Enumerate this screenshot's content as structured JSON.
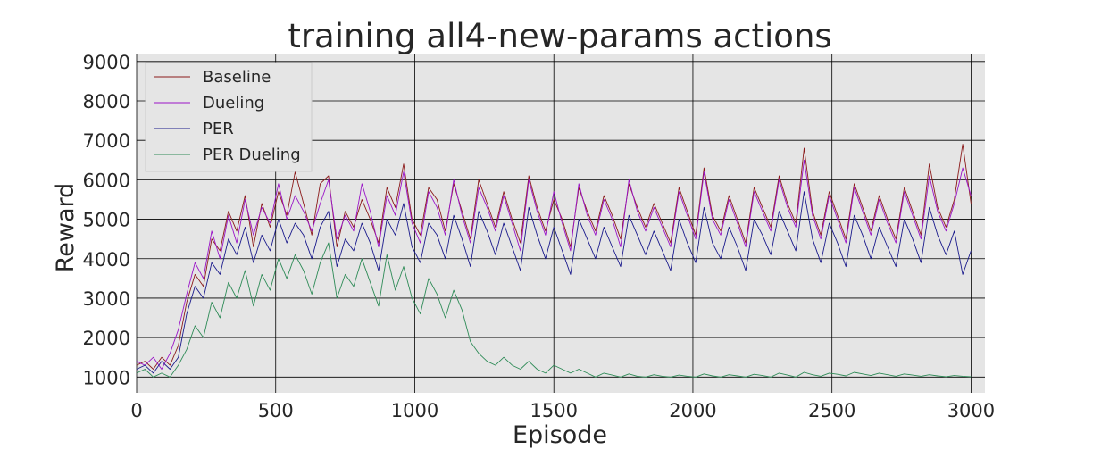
{
  "chart_data": {
    "type": "line",
    "title": "training all4-new-params actions",
    "xlabel": "Episode",
    "ylabel": "Reward",
    "xlim": [
      0,
      3050
    ],
    "ylim": [
      600,
      9200
    ],
    "xticks": [
      0,
      500,
      1000,
      1500,
      2000,
      2500,
      3000
    ],
    "yticks": [
      1000,
      2000,
      3000,
      4000,
      5000,
      6000,
      7000,
      8000,
      9000
    ],
    "grid": true,
    "legend_position": "top-left",
    "series": [
      {
        "name": "Baseline",
        "color": "#8b1a1a",
        "step": 30,
        "values": [
          1300,
          1400,
          1200,
          1500,
          1300,
          1800,
          2900,
          3600,
          3300,
          4500,
          4200,
          5200,
          4700,
          5600,
          4300,
          5400,
          4800,
          5700,
          5100,
          6200,
          5400,
          4600,
          5900,
          6100,
          4300,
          5200,
          4800,
          5500,
          5000,
          4400,
          5800,
          5300,
          6400,
          5000,
          4600,
          5800,
          5500,
          4700,
          5900,
          5200,
          4500,
          6000,
          5400,
          4800,
          5700,
          5000,
          4400,
          6100,
          5300,
          4700,
          5500,
          5000,
          4300,
          5800,
          5200,
          4700,
          5600,
          5100,
          4500,
          5900,
          5300,
          4800,
          5400,
          4900,
          4400,
          5800,
          5200,
          4600,
          6300,
          5100,
          4700,
          5600,
          5000,
          4400,
          5800,
          5300,
          4800,
          6100,
          5400,
          4900,
          6800,
          5200,
          4600,
          5700,
          5100,
          4500,
          5900,
          5300,
          4700,
          5600,
          5000,
          4500,
          5800,
          5200,
          4600,
          6400,
          5300,
          4800,
          5500,
          6900,
          5400
        ]
      },
      {
        "name": "Dueling",
        "color": "#9a14c8",
        "step": 30,
        "values": [
          1400,
          1300,
          1500,
          1200,
          1600,
          2200,
          3100,
          3900,
          3500,
          4700,
          4000,
          5100,
          4400,
          5500,
          4600,
          5300,
          4900,
          5900,
          5000,
          5600,
          5200,
          4700,
          5400,
          6000,
          4500,
          5100,
          4700,
          5900,
          5200,
          4300,
          5600,
          5100,
          6200,
          4900,
          4400,
          5700,
          5300,
          4600,
          6000,
          5100,
          4400,
          5800,
          5300,
          4700,
          5600,
          4900,
          4200,
          6000,
          5200,
          4600,
          5700,
          4900,
          4200,
          5900,
          5100,
          4600,
          5500,
          5000,
          4300,
          6000,
          5200,
          4700,
          5300,
          4800,
          4300,
          5700,
          5100,
          4500,
          6200,
          5000,
          4600,
          5500,
          4900,
          4300,
          5700,
          5200,
          4700,
          6000,
          5300,
          4800,
          6500,
          5100,
          4500,
          5600,
          5000,
          4400,
          5800,
          5200,
          4600,
          5500,
          4900,
          4400,
          5700,
          5100,
          4500,
          6100,
          5200,
          4700,
          5400,
          6300,
          5600
        ]
      },
      {
        "name": "PER",
        "color": "#1a1a8c",
        "step": 30,
        "values": [
          1200,
          1300,
          1100,
          1400,
          1200,
          1500,
          2600,
          3300,
          3000,
          3900,
          3600,
          4500,
          4100,
          4800,
          3900,
          4600,
          4200,
          5000,
          4400,
          4900,
          4600,
          4000,
          4800,
          5200,
          3800,
          4500,
          4200,
          4900,
          4400,
          3700,
          5000,
          4600,
          5400,
          4300,
          3900,
          4900,
          4600,
          4000,
          5100,
          4500,
          3800,
          5200,
          4700,
          4100,
          4900,
          4300,
          3700,
          5300,
          4600,
          4000,
          4800,
          4200,
          3600,
          5000,
          4500,
          4000,
          4800,
          4300,
          3800,
          5100,
          4600,
          4100,
          4700,
          4200,
          3700,
          5000,
          4400,
          3900,
          5300,
          4400,
          4000,
          4800,
          4300,
          3700,
          5000,
          4600,
          4100,
          5200,
          4700,
          4200,
          5700,
          4500,
          3900,
          4900,
          4400,
          3800,
          5100,
          4600,
          4000,
          4800,
          4300,
          3800,
          5000,
          4500,
          3900,
          5300,
          4600,
          4100,
          4700,
          3600,
          4200
        ]
      },
      {
        "name": "PER Dueling",
        "color": "#2e8b57",
        "step": 30,
        "values": [
          1100,
          1200,
          1000,
          1100,
          1000,
          1300,
          1700,
          2300,
          2000,
          2900,
          2500,
          3400,
          3000,
          3700,
          2800,
          3600,
          3200,
          4000,
          3500,
          4100,
          3700,
          3100,
          3900,
          4400,
          3000,
          3600,
          3300,
          4000,
          3400,
          2800,
          4100,
          3200,
          3800,
          3000,
          2600,
          3500,
          3100,
          2500,
          3200,
          2700,
          1900,
          1600,
          1400,
          1300,
          1500,
          1300,
          1200,
          1400,
          1200,
          1100,
          1300,
          1200,
          1100,
          1200,
          1100,
          1000,
          1100,
          1050,
          1000,
          1080,
          1020,
          1000,
          1060,
          1020,
          1000,
          1050,
          1020,
          1000,
          1080,
          1030,
          1000,
          1060,
          1030,
          1000,
          1070,
          1040,
          1000,
          1100,
          1050,
          1000,
          1120,
          1060,
          1020,
          1100,
          1070,
          1030,
          1120,
          1080,
          1040,
          1100,
          1060,
          1020,
          1080,
          1050,
          1020,
          1060,
          1030,
          1010,
          1040,
          1020,
          1010
        ]
      }
    ]
  }
}
